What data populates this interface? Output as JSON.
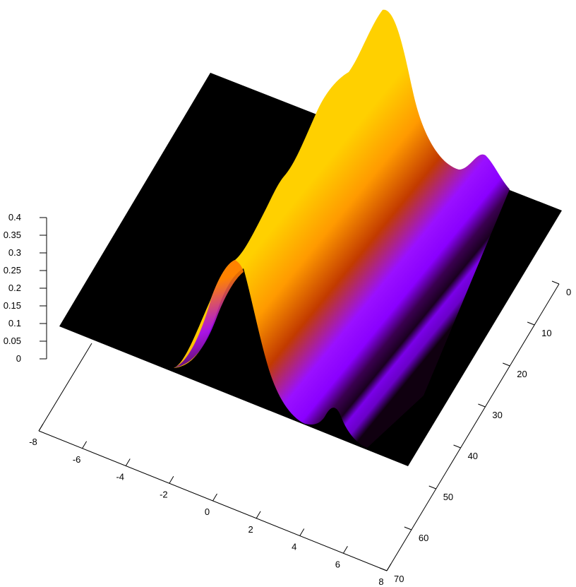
{
  "chart_data": {
    "type": "surface",
    "title": "",
    "xlabel": "",
    "ylabel": "",
    "zlabel": "",
    "colormap": [
      "#000000",
      "#8a00ff",
      "#b40000",
      "#ff8a00",
      "#ffe000"
    ],
    "x_range": [
      -8,
      8
    ],
    "y_range": [
      0,
      70
    ],
    "z_range": [
      0,
      0.4
    ],
    "x_ticks": [
      "-8",
      "-6",
      "-4",
      "-2",
      "0",
      "2",
      "4",
      "6",
      "8"
    ],
    "y_ticks": [
      "0",
      "10",
      "20",
      "30",
      "40",
      "50",
      "60",
      "70"
    ],
    "z_ticks": [
      "0",
      "0.05",
      "0.1",
      "0.15",
      "0.2",
      "0.25",
      "0.3",
      "0.35",
      "0.4"
    ],
    "surface_profile": {
      "x": [
        -6,
        -4,
        -2,
        -1,
        0,
        1,
        2,
        3,
        4,
        6
      ],
      "z_at_y0": [
        0.0,
        0.0,
        0.0,
        0.02,
        0.27,
        0.18,
        0.08,
        0.01,
        0.05,
        0.0
      ],
      "z_at_y70": [
        0.0,
        0.0,
        0.0,
        0.04,
        0.12,
        0.39,
        0.1,
        0.05,
        0.07,
        0.0
      ]
    },
    "grid": false,
    "legend": "none"
  }
}
